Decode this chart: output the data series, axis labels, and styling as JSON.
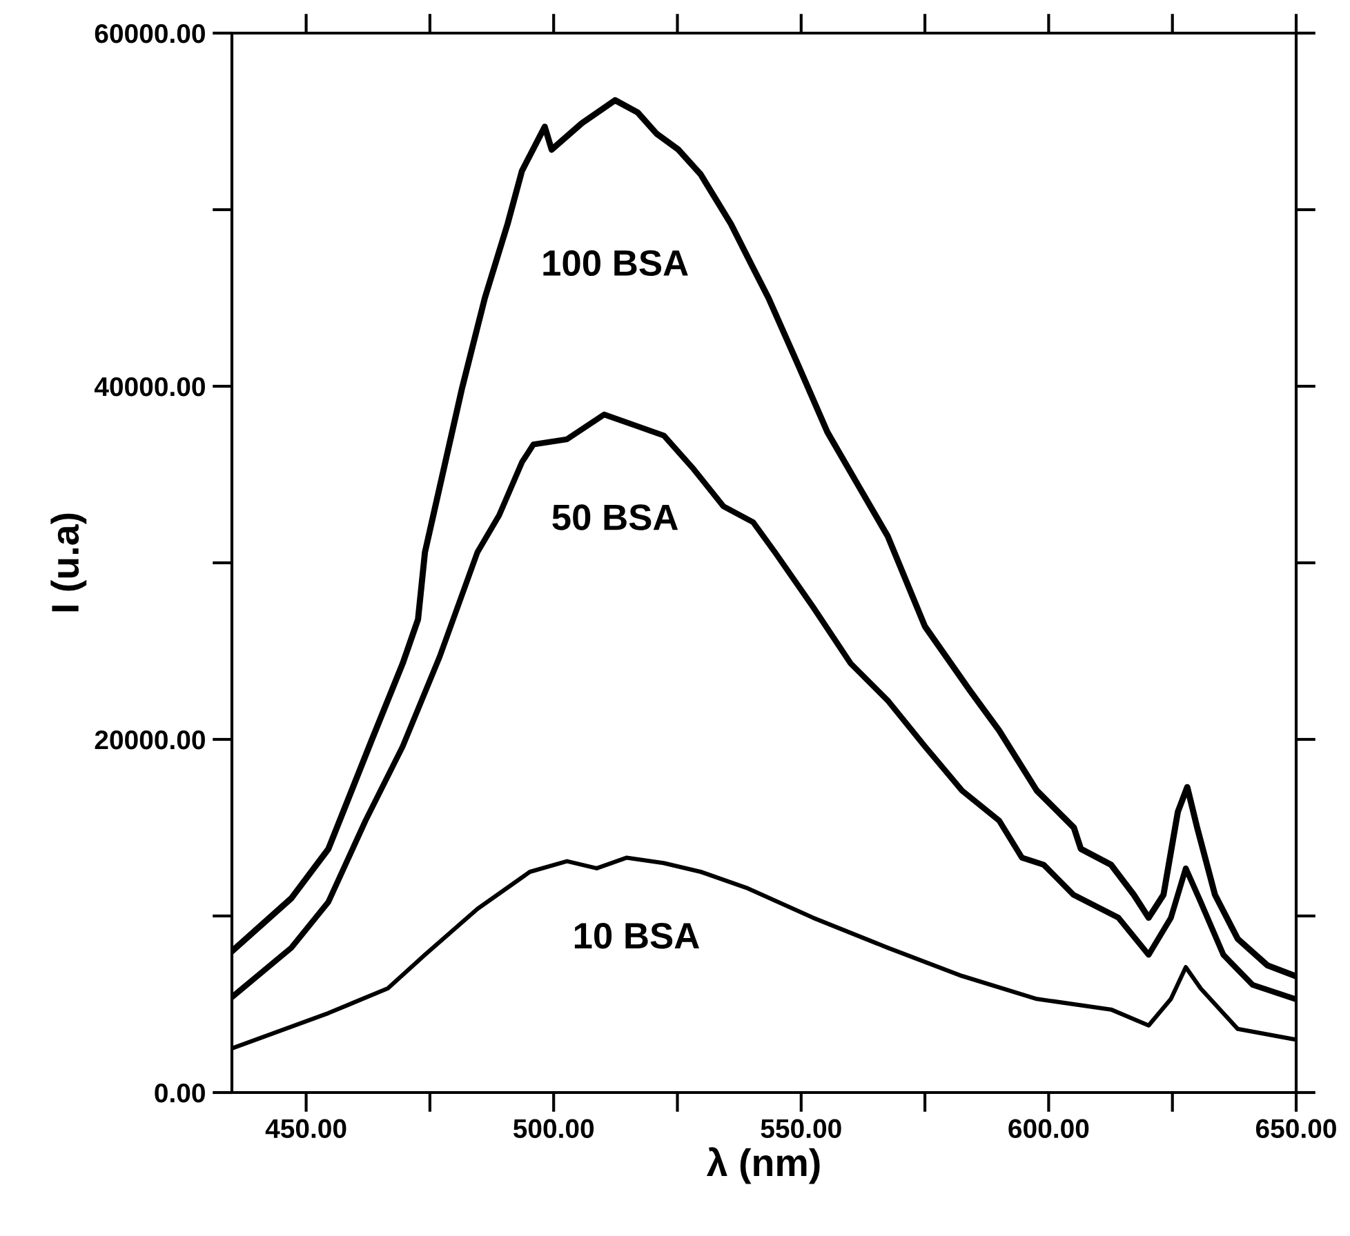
{
  "chart_data": {
    "type": "line",
    "xlabel": "λ (nm)",
    "ylabel": "I (u.a)",
    "xlim": [
      435,
      650
    ],
    "ylim": [
      0,
      60000
    ],
    "xticks": [
      {
        "value": 450,
        "label": "450.00"
      },
      {
        "value": 475,
        "label": null
      },
      {
        "value": 500,
        "label": "500.00"
      },
      {
        "value": 525,
        "label": null
      },
      {
        "value": 550,
        "label": "550.00"
      },
      {
        "value": 575,
        "label": null
      },
      {
        "value": 600,
        "label": "600.00"
      },
      {
        "value": 625,
        "label": null
      },
      {
        "value": 650,
        "label": "650.00"
      }
    ],
    "yticks": [
      {
        "value": 0,
        "label": "0.00"
      },
      {
        "value": 10000,
        "label": null
      },
      {
        "value": 20000,
        "label": "20000.00"
      },
      {
        "value": 30000,
        "label": null
      },
      {
        "value": 40000,
        "label": "40000.00"
      },
      {
        "value": 50000,
        "label": null
      },
      {
        "value": 60000,
        "label": "60000.00"
      }
    ],
    "grid": false,
    "legend": false,
    "marker": "none",
    "line_style": "solid",
    "series": [
      {
        "color": "#000000",
        "x": [
          435,
          447,
          454.5,
          463.3,
          469.5,
          472.6,
          474,
          481.5,
          486.1,
          490.7,
          493.6,
          498.2,
          499.6,
          505.7,
          512.4,
          517,
          520.8,
          525.2,
          529.7,
          535.8,
          540.3,
          543.4,
          549.4,
          555.3,
          561.5,
          567.5,
          575,
          584,
          590,
          597.6,
          605.1,
          606.5,
          612.6,
          617.2,
          620.2,
          623.2,
          626.1,
          628,
          630,
          633.6,
          638.2,
          644.2,
          649.8
        ],
        "values": [
          8000,
          11000,
          13800,
          20000,
          24300,
          26800,
          30600,
          39900,
          45000,
          49200,
          52200,
          54700,
          53400,
          54900,
          56200,
          55500,
          54300,
          53400,
          52000,
          49200,
          46700,
          45000,
          41200,
          37400,
          34400,
          31500,
          26400,
          22800,
          20500,
          17100,
          15000,
          13800,
          12900,
          11200,
          9900,
          11200,
          15900,
          17300,
          15000,
          11200,
          8700,
          7200,
          6600
        ]
      },
      {
        "color": "#000000",
        "x": [
          435,
          447,
          454.5,
          462,
          469.5,
          477,
          484.6,
          489,
          493.6,
          495.9,
          502.7,
          510.2,
          516.3,
          522.3,
          528.3,
          534.3,
          540.3,
          544.7,
          552.4,
          560,
          567.5,
          575,
          582.5,
          590,
          594.6,
          599,
          605,
          614.1,
          620.2,
          624.7,
          627.7,
          630.7,
          635.3,
          641.2,
          649.8
        ],
        "values": [
          5400,
          8200,
          10800,
          15400,
          19600,
          24700,
          30600,
          32700,
          35700,
          36700,
          37000,
          38400,
          37800,
          37200,
          35300,
          33200,
          32300,
          30600,
          27500,
          24300,
          22200,
          19600,
          17100,
          15400,
          13300,
          12900,
          11200,
          9900,
          7800,
          9900,
          12700,
          10800,
          7800,
          6100,
          5300
        ]
      },
      {
        "color": "#000000",
        "x": [
          435,
          454.5,
          466.5,
          474,
          484.6,
          495.2,
          502.7,
          508.7,
          514.7,
          522.2,
          529.7,
          538.9,
          552.4,
          567.5,
          582.5,
          597.6,
          612.6,
          620.2,
          624.7,
          627.7,
          630.7,
          638.2,
          649.8
        ],
        "values": [
          2500,
          4500,
          5900,
          7800,
          10400,
          12500,
          13100,
          12700,
          13300,
          13000,
          12500,
          11600,
          9900,
          8200,
          6600,
          5300,
          4700,
          3800,
          5300,
          7100,
          5900,
          3600,
          3000
        ]
      }
    ],
    "annotations": [
      "100 BSA",
      "50 BSA",
      "10 BSA"
    ]
  }
}
